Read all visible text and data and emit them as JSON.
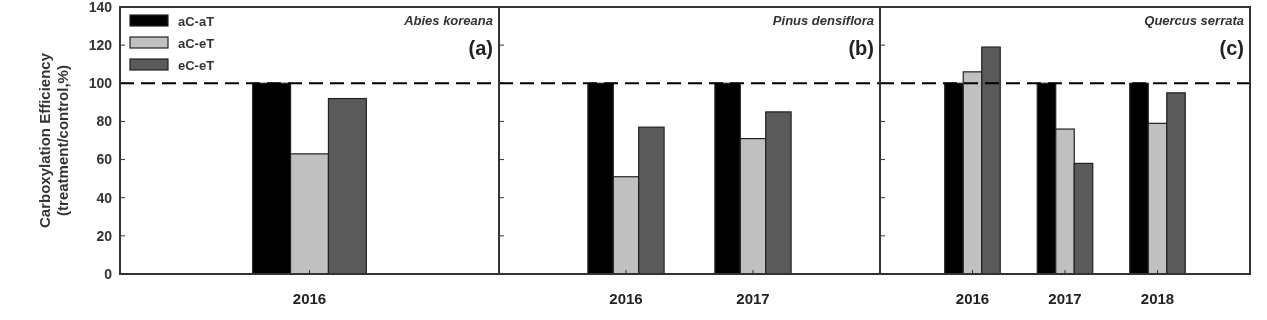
{
  "chart_data": [
    {
      "type": "bar",
      "title": "Abies koreana",
      "ylabel": "Carboxylation Efficiency\n(treatment/control,%)",
      "annotations": [
        "(a)"
      ],
      "categories": [
        "2016"
      ],
      "ylim": [
        0,
        140
      ],
      "yticks": [
        0,
        20,
        40,
        60,
        80,
        100,
        120,
        140
      ],
      "legend": "top left",
      "ref_lines": [
        {
          "axis": "y",
          "value": 100,
          "line_style": "dashed",
          "color": "#000000"
        }
      ],
      "series": [
        {
          "name": "aC-aT",
          "color": "#000000",
          "values": [
            100
          ]
        },
        {
          "name": "aC-eT",
          "color": "#c0c0c0",
          "values": [
            63
          ]
        },
        {
          "name": "eC-eT",
          "color": "#5a5a5a",
          "values": [
            92
          ]
        }
      ]
    },
    {
      "type": "bar",
      "title": "Pinus densiflora",
      "annotations": [
        "(b)"
      ],
      "categories": [
        "2016",
        "2017"
      ],
      "ylim": [
        0,
        140
      ],
      "yticks": [
        0,
        20,
        40,
        60,
        80,
        100,
        120,
        140
      ],
      "tick_labels": "x",
      "ref_lines": [
        {
          "axis": "y",
          "value": 100,
          "line_style": "dashed",
          "color": "#000000"
        }
      ],
      "series": [
        {
          "color": "#000000",
          "values": [
            100,
            100
          ]
        },
        {
          "color": "#c0c0c0",
          "values": [
            51,
            71
          ]
        },
        {
          "color": "#5a5a5a",
          "values": [
            77,
            85
          ]
        }
      ]
    },
    {
      "type": "bar",
      "title": "Quercus serrata",
      "annotations": [
        "(c)"
      ],
      "categories": [
        "2016",
        "2017",
        "2018"
      ],
      "ylim": [
        0,
        140
      ],
      "yticks": [
        0,
        20,
        40,
        60,
        80,
        100,
        120,
        140
      ],
      "tick_labels": "x",
      "ref_lines": [
        {
          "axis": "y",
          "value": 100,
          "line_style": "dashed",
          "color": "#000000"
        }
      ],
      "series": [
        {
          "color": "#000000",
          "values": [
            100,
            100,
            100
          ]
        },
        {
          "color": "#c0c0c0",
          "values": [
            106,
            76,
            79
          ]
        },
        {
          "color": "#5a5a5a",
          "values": [
            119,
            58,
            95
          ]
        }
      ]
    }
  ]
}
